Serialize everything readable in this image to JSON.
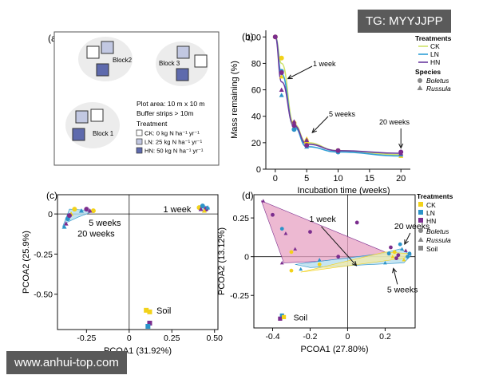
{
  "watermarks": {
    "top": "TG: MYYJJPP",
    "bottom": "www.anhui-top.com"
  },
  "colors": {
    "CK": "#f2d21a",
    "LN": "#2b93c9",
    "HN": "#7b2d8e",
    "soil": "#808080",
    "fill_ck": "#f3e9a8",
    "fill_ln": "#b3dcee",
    "fill_hn": "#e7a1c3"
  },
  "panel_a": {
    "tag": "(a)",
    "blocks": [
      "Block2",
      "Block 3",
      "Block 1"
    ],
    "info": [
      "Plot area: 10 m x 10 m",
      "Buffer strips > 10m"
    ],
    "treatment_title": "Treatment",
    "legend": [
      "CK: 0 kg N ha⁻¹ yr⁻¹",
      "LN: 25 kg N ha⁻¹ yr⁻¹",
      "HN: 50 kg N ha⁻¹ yr⁻¹"
    ]
  },
  "chart_data": [
    {
      "panel": "(b)",
      "type": "line",
      "xlabel": "Incubation time (weeks)",
      "ylabel": "Mass remaining (%)",
      "xlim": [
        -1.5,
        21.5
      ],
      "ylim": [
        0,
        105
      ],
      "xticks": [
        0,
        5,
        10,
        15,
        20
      ],
      "yticks": [
        0,
        20,
        40,
        60,
        80,
        100
      ],
      "x": [
        0,
        1,
        3,
        5,
        10,
        20
      ],
      "series": [
        {
          "name": "CK",
          "values": [
            100,
            80,
            34,
            20,
            14,
            11
          ]
        },
        {
          "name": "LN",
          "values": [
            100,
            72,
            32,
            17,
            13,
            10
          ]
        },
        {
          "name": "HN",
          "values": [
            100,
            66,
            33,
            19,
            14,
            12
          ]
        }
      ],
      "points": [
        {
          "t": "CK",
          "s": "Boletus",
          "x": 0,
          "y": 100
        },
        {
          "t": "CK",
          "s": "Boletus",
          "x": 1,
          "y": 84
        },
        {
          "t": "CK",
          "s": "Russula",
          "x": 1,
          "y": 70
        },
        {
          "t": "CK",
          "s": "Boletus",
          "x": 3,
          "y": 35
        },
        {
          "t": "CK",
          "s": "Russula",
          "x": 3,
          "y": 32
        },
        {
          "t": "CK",
          "s": "Boletus",
          "x": 5,
          "y": 20
        },
        {
          "t": "CK",
          "s": "Russula",
          "x": 5,
          "y": 23
        },
        {
          "t": "CK",
          "s": "Boletus",
          "x": 10,
          "y": 14
        },
        {
          "t": "CK",
          "s": "Russula",
          "x": 20,
          "y": 10
        },
        {
          "t": "LN",
          "s": "Boletus",
          "x": 1,
          "y": 74
        },
        {
          "t": "LN",
          "s": "Russula",
          "x": 1,
          "y": 56
        },
        {
          "t": "LN",
          "s": "Boletus",
          "x": 3,
          "y": 30
        },
        {
          "t": "LN",
          "s": "Russula",
          "x": 5,
          "y": 17
        },
        {
          "t": "LN",
          "s": "Boletus",
          "x": 10,
          "y": 13
        },
        {
          "t": "LN",
          "s": "Russula",
          "x": 20,
          "y": 11
        },
        {
          "t": "HN",
          "s": "Boletus",
          "x": 0,
          "y": 100
        },
        {
          "t": "HN",
          "s": "Boletus",
          "x": 1,
          "y": 73
        },
        {
          "t": "HN",
          "s": "Russula",
          "x": 1,
          "y": 60
        },
        {
          "t": "HN",
          "s": "Russula",
          "x": 3,
          "y": 36
        },
        {
          "t": "HN",
          "s": "Boletus",
          "x": 3,
          "y": 33
        },
        {
          "t": "HN",
          "s": "Boletus",
          "x": 5,
          "y": 18
        },
        {
          "t": "HN",
          "s": "Russula",
          "x": 5,
          "y": 22
        },
        {
          "t": "HN",
          "s": "Boletus",
          "x": 10,
          "y": 14
        },
        {
          "t": "HN",
          "s": "Boletus",
          "x": 20,
          "y": 13
        },
        {
          "t": "HN",
          "s": "Russula",
          "x": 20,
          "y": 12
        }
      ],
      "annotations": [
        {
          "text": "1 week",
          "x": 1,
          "y": 66
        },
        {
          "text": "5 weeks",
          "x": 5,
          "y": 24
        },
        {
          "text": "20 weeks",
          "x": 20,
          "y": 13
        }
      ],
      "legend": {
        "treatments_title": "Treatments",
        "treatments": [
          "CK",
          "LN",
          "HN"
        ],
        "species_title": "Species",
        "species": [
          "Boletus",
          "Russula"
        ]
      }
    },
    {
      "panel": "(c)",
      "type": "scatter",
      "xlabel": "PCOA1 (31.92%)",
      "ylabel": "PCOA2 (25.9%)",
      "xlim": [
        -0.42,
        0.52
      ],
      "ylim": [
        -0.72,
        0.12
      ],
      "xticks": [
        -0.25,
        0,
        0.25,
        0.5
      ],
      "xticklabels": [
        "-0.25",
        "0",
        "0.25",
        "0.50"
      ],
      "yticks": [
        0,
        -0.25,
        -0.5
      ],
      "yticklabels": [
        "0",
        "-0.25",
        "-0.50"
      ],
      "hulls": [
        {
          "t": "LN",
          "pts": [
            [
              -0.35,
              0.03
            ],
            [
              -0.2,
              0.02
            ],
            [
              -0.3,
              -0.02
            ],
            [
              -0.36,
              -0.05
            ],
            [
              -0.39,
              -0.08
            ]
          ]
        },
        {
          "t": "LN",
          "pts": [
            [
              0.42,
              0.04
            ],
            [
              0.45,
              0.05
            ],
            [
              0.47,
              0.04
            ],
            [
              0.46,
              0.02
            ],
            [
              0.41,
              0.02
            ]
          ]
        }
      ],
      "points": [
        {
          "t": "CK",
          "s": "Boletus",
          "x": -0.32,
          "y": 0.03
        },
        {
          "t": "CK",
          "s": "Boletus",
          "x": -0.21,
          "y": 0.02
        },
        {
          "t": "LN",
          "s": "Russula",
          "x": -0.28,
          "y": 0.02
        },
        {
          "t": "HN",
          "s": "Boletus",
          "x": -0.25,
          "y": 0.03
        },
        {
          "t": "HN",
          "s": "Russula",
          "x": -0.23,
          "y": 0.02
        },
        {
          "t": "CK",
          "s": "Russula",
          "x": -0.34,
          "y": 0.0
        },
        {
          "t": "LN",
          "s": "Boletus",
          "x": -0.36,
          "y": -0.03
        },
        {
          "t": "HN",
          "s": "Russula",
          "x": -0.37,
          "y": -0.06
        },
        {
          "t": "LN",
          "s": "Russula",
          "x": -0.38,
          "y": -0.08
        },
        {
          "t": "HN",
          "s": "Boletus",
          "x": -0.35,
          "y": -0.01
        },
        {
          "t": "CK",
          "s": "Boletus",
          "x": 0.41,
          "y": 0.04
        },
        {
          "t": "LN",
          "s": "Boletus",
          "x": 0.43,
          "y": 0.05
        },
        {
          "t": "HN",
          "s": "Boletus",
          "x": 0.45,
          "y": 0.03
        },
        {
          "t": "CK",
          "s": "Russula",
          "x": 0.44,
          "y": 0.02
        },
        {
          "t": "LN",
          "s": "Russula",
          "x": 0.46,
          "y": 0.04
        },
        {
          "t": "HN",
          "s": "Russula",
          "x": 0.42,
          "y": 0.03
        },
        {
          "t": "CK",
          "s": "Soil",
          "x": 0.1,
          "y": -0.6
        },
        {
          "t": "CK",
          "s": "Soil",
          "x": 0.12,
          "y": -0.61
        },
        {
          "t": "HN",
          "s": "Soil",
          "x": 0.12,
          "y": -0.68
        },
        {
          "t": "LN",
          "s": "Soil",
          "x": 0.11,
          "y": -0.7
        }
      ],
      "annotations": [
        {
          "text": "1 week",
          "x": 0.41,
          "y": 0.04
        },
        {
          "text": "5 weeks",
          "x": -0.19,
          "y": -0.02
        },
        {
          "text": "20 weeks",
          "x": -0.34,
          "y": -0.11
        },
        {
          "text": "Soil",
          "x": 0.16,
          "y": -0.6
        }
      ]
    },
    {
      "panel": "(d)",
      "type": "scatter",
      "xlabel": "PCOA1 (27.80%)",
      "ylabel": "PCOA2 (13.12%)",
      "xlim": [
        -0.5,
        0.36
      ],
      "ylim": [
        -0.46,
        0.4
      ],
      "xticks": [
        -0.4,
        -0.2,
        0,
        0.2
      ],
      "xticklabels": [
        "-0.4",
        "-0.2",
        "0",
        "0.2"
      ],
      "yticks": [
        0.25,
        0,
        -0.25
      ],
      "yticklabels": [
        "0.25",
        "0",
        "-0.25"
      ],
      "hulls": [
        {
          "t": "HN",
          "pts": [
            [
              -0.46,
              0.36
            ],
            [
              0.22,
              0.02
            ],
            [
              -0.15,
              -0.03
            ],
            [
              -0.34,
              -0.04
            ]
          ]
        },
        {
          "t": "LN",
          "pts": [
            [
              0.18,
              0.02
            ],
            [
              0.28,
              0.05
            ],
            [
              0.34,
              0.01
            ],
            [
              0.3,
              -0.04
            ],
            [
              -0.2,
              -0.07
            ],
            [
              -0.28,
              -0.05
            ]
          ]
        },
        {
          "t": "CK",
          "pts": [
            [
              0.2,
              0.03
            ],
            [
              0.33,
              0.02
            ],
            [
              0.3,
              -0.01
            ],
            [
              -0.25,
              -0.1
            ]
          ]
        }
      ],
      "points": [
        {
          "t": "HN",
          "s": "Russula",
          "x": -0.45,
          "y": 0.36
        },
        {
          "t": "HN",
          "s": "Boletus",
          "x": -0.4,
          "y": 0.27
        },
        {
          "t": "LN",
          "s": "Boletus",
          "x": -0.35,
          "y": 0.18
        },
        {
          "t": "HN",
          "s": "Russula",
          "x": -0.33,
          "y": 0.15
        },
        {
          "t": "HN",
          "s": "Boletus",
          "x": -0.2,
          "y": 0.16
        },
        {
          "t": "HN",
          "s": "Russula",
          "x": -0.28,
          "y": 0.05
        },
        {
          "t": "HN",
          "s": "Russula",
          "x": -0.35,
          "y": -0.04
        },
        {
          "t": "LN",
          "s": "Russula",
          "x": -0.15,
          "y": -0.02
        },
        {
          "t": "LN",
          "s": "Russula",
          "x": -0.25,
          "y": -0.08
        },
        {
          "t": "CK",
          "s": "Boletus",
          "x": -0.3,
          "y": -0.09
        },
        {
          "t": "HN",
          "s": "Boletus",
          "x": -0.05,
          "y": 0.0
        },
        {
          "t": "CK",
          "s": "Boletus",
          "x": -0.15,
          "y": -0.05
        },
        {
          "t": "CK",
          "s": "Boletus",
          "x": -0.3,
          "y": 0.03
        },
        {
          "t": "HN",
          "s": "Boletus",
          "x": 0.05,
          "y": 0.22
        },
        {
          "t": "LN",
          "s": "Boletus",
          "x": 0.22,
          "y": 0.02
        },
        {
          "t": "CK",
          "s": "Boletus",
          "x": 0.25,
          "y": 0.03
        },
        {
          "t": "HN",
          "s": "Boletus",
          "x": 0.27,
          "y": 0.01
        },
        {
          "t": "LN",
          "s": "Russula",
          "x": 0.29,
          "y": 0.05
        },
        {
          "t": "HN",
          "s": "Russula",
          "x": 0.31,
          "y": 0.04
        },
        {
          "t": "LN",
          "s": "Boletus",
          "x": 0.32,
          "y": 0.0
        },
        {
          "t": "CK",
          "s": "Russula",
          "x": 0.3,
          "y": -0.02
        },
        {
          "t": "HN",
          "s": "Boletus",
          "x": 0.26,
          "y": -0.01
        },
        {
          "t": "LN",
          "s": "Boletus",
          "x": 0.33,
          "y": 0.02
        },
        {
          "t": "HN",
          "s": "Boletus",
          "x": 0.23,
          "y": 0.06
        },
        {
          "t": "LN",
          "s": "Russula",
          "x": 0.2,
          "y": -0.04
        },
        {
          "t": "CK",
          "s": "Russula",
          "x": 0.24,
          "y": 0.0
        },
        {
          "t": "LN",
          "s": "Boletus",
          "x": 0.28,
          "y": 0.08
        },
        {
          "t": "LN",
          "s": "Soil",
          "x": -0.35,
          "y": -0.38
        },
        {
          "t": "HN",
          "s": "Soil",
          "x": -0.36,
          "y": -0.4
        },
        {
          "t": "CK",
          "s": "Soil",
          "x": -0.34,
          "y": -0.39
        }
      ],
      "annotations": [
        {
          "text": "1 week",
          "x": -0.2,
          "y": 0.22
        },
        {
          "text": "20 weeks",
          "x": 0.27,
          "y": 0.06
        },
        {
          "text": "5 weeks",
          "x": 0.24,
          "y": -0.05
        },
        {
          "text": "Soil",
          "x": -0.34,
          "y": -0.38
        }
      ],
      "legend": {
        "treatments_title": "Treatments",
        "treatments": [
          "CK",
          "LN",
          "HN"
        ],
        "species": [
          "Boletus",
          "Russula",
          "Soil"
        ]
      }
    }
  ]
}
